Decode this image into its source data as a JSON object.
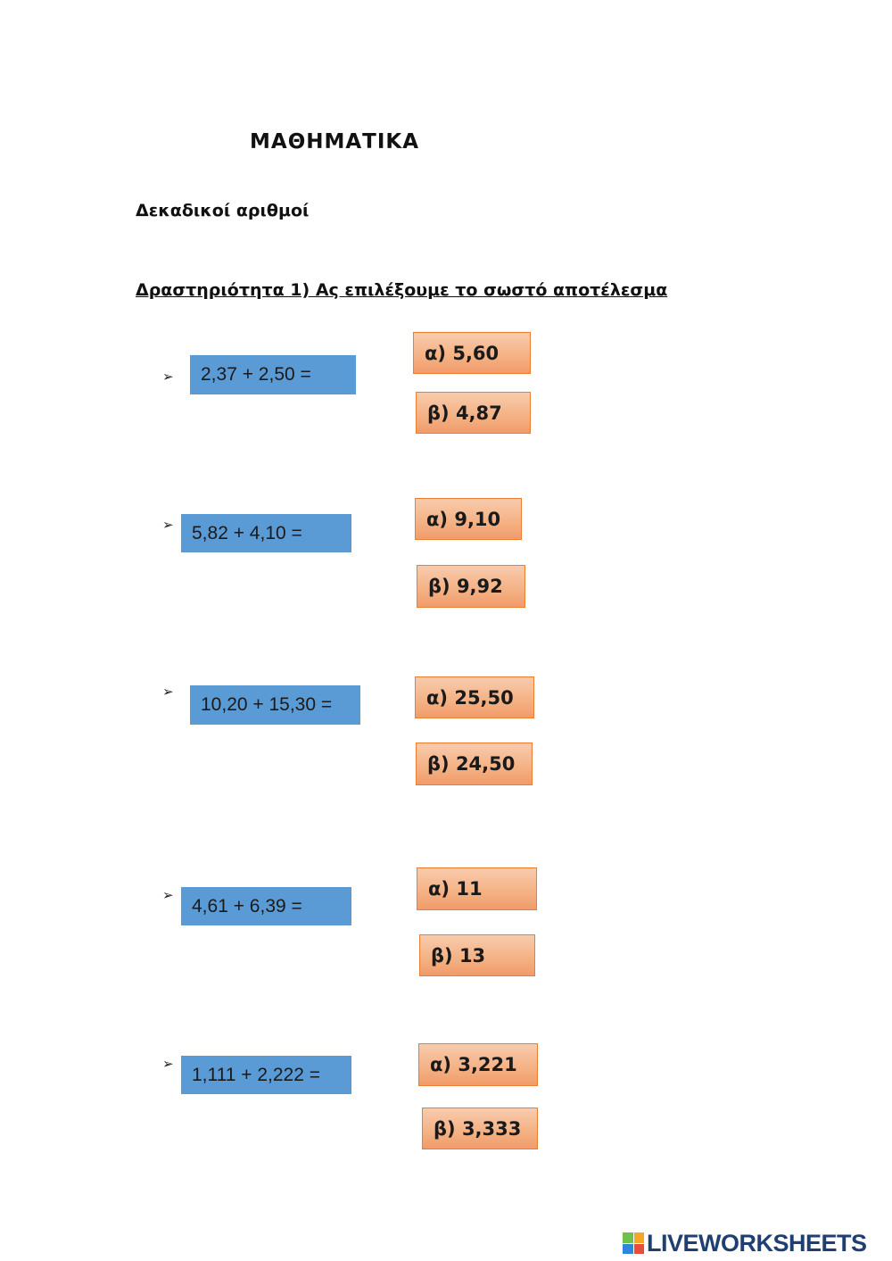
{
  "worksheet": {
    "title": "ΜΑΘΗΜΑΤΙΚΑ",
    "subtitle": "Δεκαδικοί αριθμοί",
    "activity": "Δραστηριότητα 1) Ας επιλέξουμε το σωστό αποτέλεσμα",
    "bullet_glyph": "➢",
    "questions": [
      {
        "expression": "2,37 + 2,50 =",
        "option_a": "α) 5,60",
        "option_b": "β) 4,87"
      },
      {
        "expression": "5,82 + 4,10 =",
        "option_a": "α) 9,10",
        "option_b": "β) 9,92"
      },
      {
        "expression": "10,20 + 15,30 =",
        "option_a": "α) 25,50",
        "option_b": "β) 24,50"
      },
      {
        "expression": "4,61 + 6,39 =",
        "option_a": "α) 11",
        "option_b": "β) 13"
      },
      {
        "expression": "1,111 + 2,222 =",
        "option_a": "α) 3,221",
        "option_b": "β) 3,333"
      }
    ]
  },
  "footer": {
    "logo_text": "LIVEWORKSHEETS",
    "logo_icon": "liveworksheets-logo-icon"
  },
  "colors": {
    "question_box": "#5b9bd5",
    "answer_box": "#f4b183",
    "answer_border": "#ed7d31",
    "logo_text": "#1f3f73"
  }
}
